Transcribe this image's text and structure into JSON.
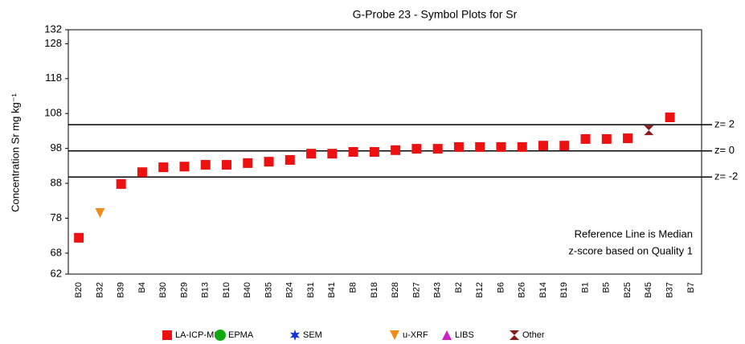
{
  "chart_data": {
    "type": "scatter",
    "title": "G-Probe 23 - Symbol Plots for Sr",
    "y_label": "Concentration Sr mg kg⁻¹",
    "categories": [
      "B20",
      "B32",
      "B39",
      "B4",
      "B30",
      "B29",
      "B13",
      "B10",
      "B40",
      "B35",
      "B24",
      "B31",
      "B41",
      "B8",
      "B18",
      "B28",
      "B27",
      "B43",
      "B2",
      "B12",
      "B6",
      "B26",
      "B14",
      "B19",
      "B1",
      "B5",
      "B25",
      "B45",
      "B37",
      "B7"
    ],
    "ylim": [
      62,
      132
    ],
    "yticks": [
      62,
      68,
      78,
      88,
      98,
      108,
      118,
      128,
      132
    ],
    "reference_lines": [
      {
        "label": "z= 2",
        "value": 104.8
      },
      {
        "label": "z= 0",
        "value": 97.3
      },
      {
        "label": "z= -2",
        "value": 89.8
      }
    ],
    "annotations": [
      "Reference Line is Median",
      "z-score based on Quality 1"
    ],
    "series": [
      {
        "name": "LA-ICP-MS",
        "color": "#ee1111",
        "marker": "square",
        "values": [
          72.4,
          null,
          87.8,
          91.2,
          92.6,
          92.8,
          93.3,
          93.3,
          93.8,
          94.2,
          94.7,
          96.5,
          96.5,
          97.0,
          97.0,
          97.5,
          97.9,
          97.9,
          98.4,
          98.4,
          98.4,
          98.4,
          98.8,
          98.8,
          100.7,
          100.7,
          100.9,
          null,
          106.9,
          null
        ]
      },
      {
        "name": "EPMA",
        "color": "#11aa11",
        "marker": "circle",
        "values": [
          null,
          null,
          null,
          null,
          null,
          null,
          null,
          null,
          null,
          null,
          null,
          null,
          null,
          null,
          null,
          null,
          null,
          null,
          null,
          null,
          null,
          null,
          null,
          null,
          null,
          null,
          null,
          null,
          null,
          null
        ]
      },
      {
        "name": "SEM",
        "color": "#1133dd",
        "marker": "star",
        "values": [
          null,
          null,
          null,
          null,
          null,
          null,
          null,
          null,
          null,
          null,
          null,
          null,
          null,
          null,
          null,
          null,
          null,
          null,
          null,
          null,
          null,
          null,
          null,
          null,
          null,
          null,
          null,
          null,
          null,
          null
        ]
      },
      {
        "name": "u-XRF",
        "color": "#f08c1a",
        "marker": "triangle-down",
        "values": [
          null,
          79.5,
          null,
          null,
          null,
          null,
          null,
          null,
          null,
          null,
          null,
          null,
          null,
          null,
          null,
          null,
          null,
          null,
          null,
          null,
          null,
          null,
          null,
          null,
          null,
          null,
          null,
          null,
          null,
          null
        ]
      },
      {
        "name": "LIBS",
        "color": "#cc22cc",
        "marker": "triangle-up",
        "values": [
          null,
          null,
          null,
          null,
          null,
          null,
          null,
          null,
          null,
          null,
          null,
          null,
          null,
          null,
          null,
          null,
          null,
          null,
          null,
          null,
          null,
          null,
          null,
          null,
          null,
          null,
          null,
          null,
          null,
          null
        ]
      },
      {
        "name": "Other",
        "color": "#8b1a1a",
        "marker": "hourglass",
        "values": [
          null,
          null,
          null,
          null,
          null,
          null,
          null,
          null,
          null,
          null,
          null,
          null,
          null,
          null,
          null,
          null,
          null,
          null,
          null,
          null,
          null,
          null,
          null,
          null,
          null,
          null,
          null,
          103.2,
          null,
          null
        ]
      }
    ]
  }
}
